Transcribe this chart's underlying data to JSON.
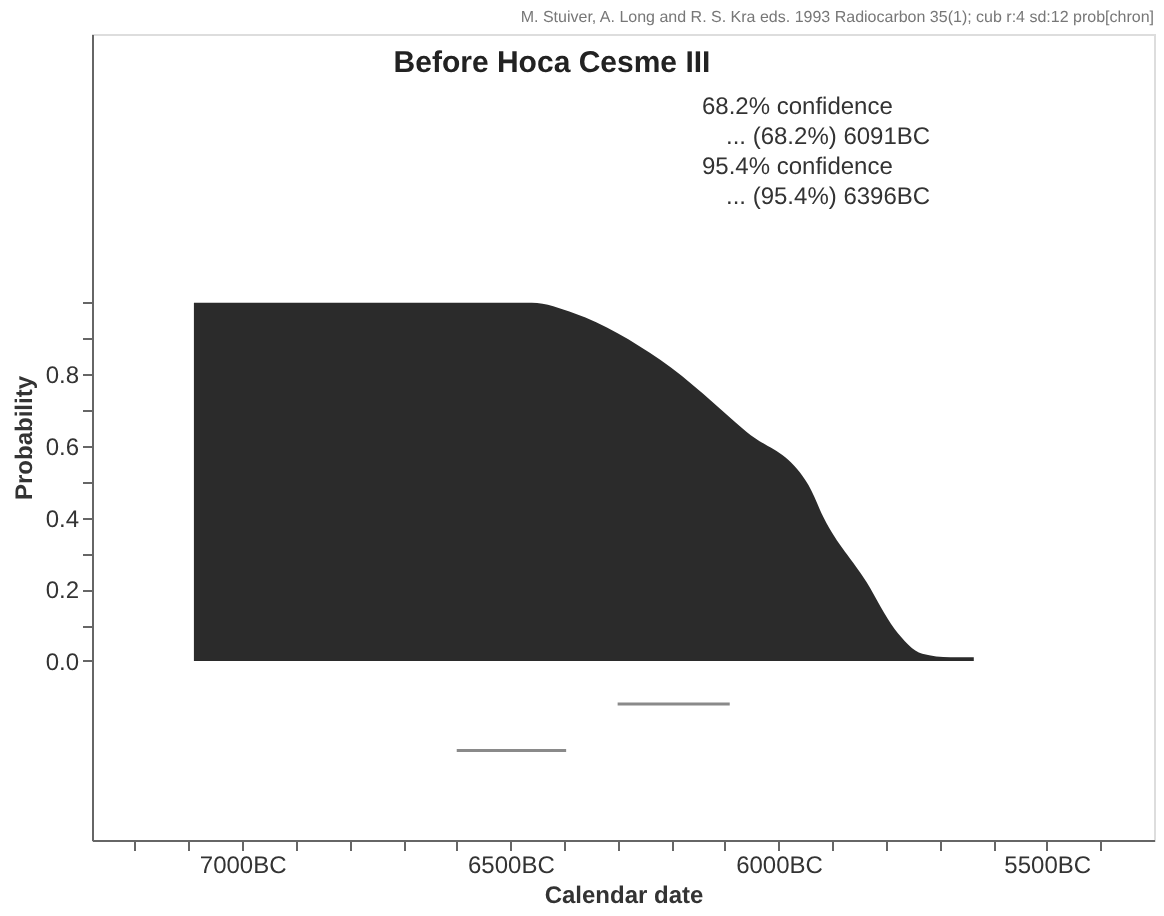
{
  "chart_data": {
    "type": "area",
    "title": "Before Hoca Cesme III",
    "xlabel": "Calendar date",
    "ylabel": "Probability",
    "annotations": [
      "M. Stuiver, A. Long and R. S. Kra eds. 1993 Radiocarbon 35(1); cub r:4 sd:12 prob[chron]",
      "68.2% confidence",
      "... (68.2%) 6091BC",
      "95.4% confidence",
      "... (95.4%) 6396BC"
    ],
    "series": [
      {
        "color": "#2b2b2b",
        "x": [
          7090,
          7090,
          6800,
          6460,
          6380,
          6220,
          6060,
          5944,
          5916,
          5836,
          5784,
          5732,
          5680,
          5636
        ],
        "values": [
          0,
          1.0,
          1.0,
          1.0,
          0.97,
          0.84,
          0.64,
          0.49,
          0.4,
          0.22,
          0.09,
          0.02,
          0.01,
          0.01
        ]
      },
      {
        "type": "line",
        "color": "#8a8a8a",
        "x": [
          6300,
          6091
        ],
        "values": [
          -0.12,
          -0.12
        ]
      },
      {
        "type": "line",
        "color": "#8a8a8a",
        "x": [
          6600,
          6396
        ],
        "values": [
          -0.25,
          -0.25
        ]
      }
    ],
    "xlim": [
      7280,
      5300
    ],
    "xticks": [
      {
        "value": 7200,
        "label": null
      },
      {
        "value": 7100,
        "label": null
      },
      {
        "value": 7000,
        "label": "7000BC"
      },
      {
        "value": 6900,
        "label": null
      },
      {
        "value": 6800,
        "label": null
      },
      {
        "value": 6700,
        "label": null
      },
      {
        "value": 6600,
        "label": null
      },
      {
        "value": 6500,
        "label": "6500BC"
      },
      {
        "value": 6400,
        "label": null
      },
      {
        "value": 6300,
        "label": null
      },
      {
        "value": 6200,
        "label": null
      },
      {
        "value": 6100,
        "label": null
      },
      {
        "value": 6000,
        "label": "6000BC"
      },
      {
        "value": 5900,
        "label": null
      },
      {
        "value": 5800,
        "label": null
      },
      {
        "value": 5700,
        "label": null
      },
      {
        "value": 5600,
        "label": null
      },
      {
        "value": 5500,
        "label": "5500BC"
      },
      {
        "value": 5400,
        "label": null
      }
    ],
    "ylim": [
      -0.5,
      1.75
    ],
    "yticks": [
      {
        "value": 0,
        "label": "0.0"
      },
      {
        "value": 0.1,
        "label": null
      },
      {
        "value": 0.2,
        "label": "0.2"
      },
      {
        "value": 0.3,
        "label": null
      },
      {
        "value": 0.4,
        "label": "0.4"
      },
      {
        "value": 0.5,
        "label": null
      },
      {
        "value": 0.6,
        "label": "0.6"
      },
      {
        "value": 0.7,
        "label": null
      },
      {
        "value": 0.8,
        "label": "0.8"
      },
      {
        "value": 0.9,
        "label": null
      },
      {
        "value": 1.0,
        "label": null
      }
    ]
  }
}
